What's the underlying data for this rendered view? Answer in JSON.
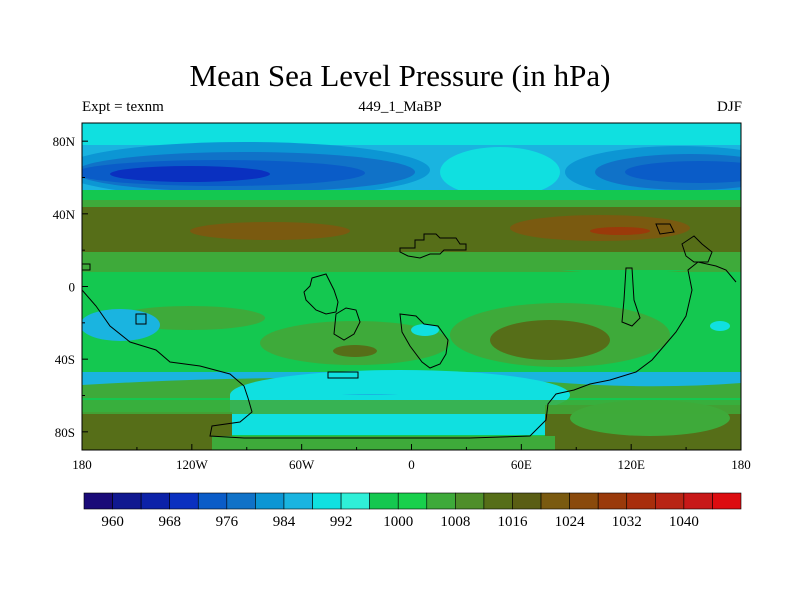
{
  "title": "Mean Sea Level Pressure (in hPa)",
  "subtitle": {
    "left": "Expt = texnm",
    "center": "449_1_MaBP",
    "right": "DJF"
  },
  "axes": {
    "x_ticks": [
      "180",
      "120W",
      "60W",
      "0",
      "60E",
      "120E",
      "180"
    ],
    "y_ticks": [
      "80N",
      "40N",
      "0",
      "40S",
      "80S"
    ]
  },
  "colorbar": {
    "labels": [
      "960",
      "968",
      "976",
      "984",
      "992",
      "1000",
      "1008",
      "1016",
      "1024",
      "1032",
      "1040"
    ],
    "colors": [
      "#1a0a78",
      "#101890",
      "#0c22a8",
      "#0a30c0",
      "#0a5cc8",
      "#1072c8",
      "#0c96d4",
      "#1ab4e0",
      "#10e0e0",
      "#2ff0d8",
      "#14c850",
      "#18d04c",
      "#3eaa3a",
      "#4e8e2a",
      "#566e18",
      "#5a5e14",
      "#7a5a10",
      "#8a4a0c",
      "#9a3a0a",
      "#a82e0c",
      "#b82414",
      "#c81818",
      "#dc0c10"
    ]
  },
  "chart_data": {
    "type": "heatmap",
    "title": "Mean Sea Level Pressure (in hPa)",
    "variable": "Mean Sea Level Pressure",
    "units": "hPa",
    "experiment": "texnm",
    "run": "449_1_MaBP",
    "season": "DJF",
    "x_range_lon": [
      -180,
      180
    ],
    "y_range_lat": [
      -90,
      90
    ],
    "x_ticks": [
      "180",
      "120W",
      "60W",
      "0",
      "60E",
      "120E",
      "180"
    ],
    "y_ticks": [
      "80N",
      "40N",
      "0",
      "40S",
      "80S"
    ],
    "contour_levels": [
      960,
      964,
      968,
      972,
      976,
      980,
      984,
      988,
      992,
      996,
      1000,
      1004,
      1008,
      1012,
      1016,
      1020,
      1024,
      1028,
      1032,
      1036,
      1040
    ],
    "colorbar_labels": [
      "960",
      "968",
      "976",
      "984",
      "992",
      "1000",
      "1008",
      "1016",
      "1024",
      "1032",
      "1040"
    ]
  }
}
